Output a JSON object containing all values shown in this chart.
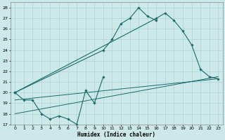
{
  "xlabel": "Humidex (Indice chaleur)",
  "bg_color": "#cce8e8",
  "grid_color": "#aad4d4",
  "line_color": "#1a6b6b",
  "xlim": [
    -0.5,
    23.5
  ],
  "ylim": [
    17,
    28.5
  ],
  "yticks": [
    17,
    18,
    19,
    20,
    21,
    22,
    23,
    24,
    25,
    26,
    27,
    28
  ],
  "xticks": [
    0,
    1,
    2,
    3,
    4,
    5,
    6,
    7,
    8,
    9,
    10,
    11,
    12,
    13,
    14,
    15,
    16,
    17,
    18,
    19,
    20,
    21,
    22,
    23
  ],
  "series": [
    {
      "x": [
        0,
        1,
        2,
        3,
        4,
        5,
        6,
        7,
        8,
        9,
        10
      ],
      "y": [
        20.0,
        19.3,
        19.3,
        18.0,
        17.5,
        17.8,
        17.5,
        17.0,
        20.2,
        19.0,
        21.5
      ],
      "has_markers": true
    },
    {
      "x": [
        0,
        10,
        11,
        12,
        13,
        14,
        15,
        16
      ],
      "y": [
        20.0,
        24.0,
        25.0,
        26.5,
        27.0,
        28.0,
        27.2,
        26.8
      ],
      "has_markers": true
    },
    {
      "x": [
        0,
        16,
        17,
        18,
        19,
        20,
        21,
        22,
        23
      ],
      "y": [
        20.0,
        27.0,
        27.5,
        26.8,
        25.8,
        24.5,
        22.2,
        21.5,
        21.3
      ],
      "has_markers": true
    },
    {
      "x": [
        0,
        23
      ],
      "y": [
        19.3,
        21.3
      ],
      "has_markers": false
    },
    {
      "x": [
        0,
        23
      ],
      "y": [
        18.0,
        21.5
      ],
      "has_markers": false
    }
  ]
}
